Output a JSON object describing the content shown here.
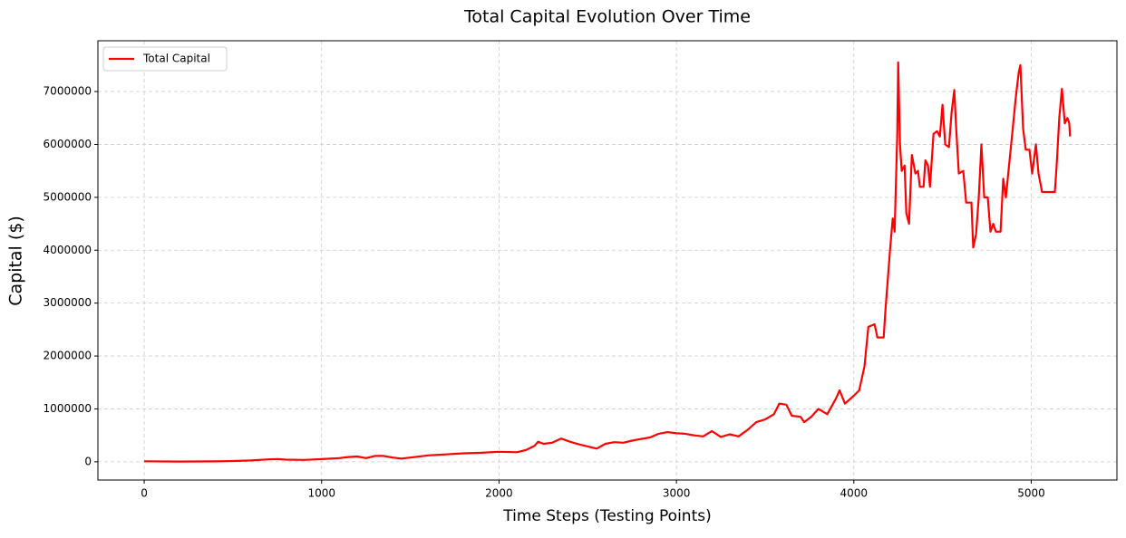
{
  "chart_data": {
    "type": "line",
    "title": "Total Capital Evolution Over Time",
    "x_label": "Time Steps (Testing Points)",
    "y_label": "Capital ($)",
    "x": [
      0,
      200,
      400,
      500,
      600,
      700,
      750,
      800,
      900,
      1000,
      1100,
      1150,
      1200,
      1250,
      1300,
      1350,
      1400,
      1450,
      1500,
      1600,
      1700,
      1800,
      1900,
      2000,
      2100,
      2150,
      2200,
      2220,
      2250,
      2300,
      2350,
      2400,
      2450,
      2500,
      2550,
      2600,
      2650,
      2700,
      2750,
      2800,
      2850,
      2900,
      2950,
      3000,
      3050,
      3100,
      3150,
      3200,
      3250,
      3300,
      3350,
      3400,
      3450,
      3500,
      3550,
      3580,
      3620,
      3650,
      3700,
      3720,
      3760,
      3800,
      3850,
      3900,
      3920,
      3950,
      4000,
      4030,
      4060,
      4082,
      4117,
      4133,
      4168,
      4179,
      4204,
      4219,
      4230,
      4245,
      4250,
      4260,
      4270,
      4286,
      4296,
      4311,
      4327,
      4347,
      4362,
      4372,
      4393,
      4403,
      4418,
      4429,
      4449,
      4469,
      4485,
      4500,
      4515,
      4536,
      4551,
      4566,
      4577,
      4592,
      4617,
      4633,
      4663,
      4673,
      4689,
      4704,
      4719,
      4735,
      4755,
      4770,
      4786,
      4801,
      4827,
      4842,
      4857,
      4872,
      4893,
      4913,
      4929,
      4939,
      4954,
      4969,
      4990,
      5005,
      5026,
      5041,
      5061,
      5133,
      5143,
      5158,
      5173,
      5189,
      5204,
      5214,
      5219
    ],
    "series": [
      {
        "name": "Total Capital",
        "color": "#ff0000",
        "values": [
          10000,
          5000,
          8000,
          15000,
          25000,
          45000,
          50000,
          40000,
          35000,
          50000,
          70000,
          90000,
          100000,
          70000,
          110000,
          110000,
          80000,
          60000,
          80000,
          120000,
          140000,
          160000,
          170000,
          190000,
          180000,
          220000,
          300000,
          380000,
          340000,
          360000,
          440000,
          380000,
          330000,
          290000,
          250000,
          340000,
          370000,
          360000,
          400000,
          430000,
          460000,
          530000,
          560000,
          540000,
          530000,
          500000,
          480000,
          580000,
          470000,
          520000,
          480000,
          600000,
          750000,
          800000,
          900000,
          1100000,
          1080000,
          870000,
          850000,
          750000,
          850000,
          1000000,
          900000,
          1200000,
          1350000,
          1100000,
          1250000,
          1350000,
          1800000,
          2550000,
          2600000,
          2350000,
          2350000,
          2900000,
          4000000,
          4600000,
          4350000,
          6200000,
          7550000,
          6000000,
          5500000,
          5600000,
          4700000,
          4500000,
          5800000,
          5450000,
          5500000,
          5200000,
          5200000,
          5700000,
          5600000,
          5200000,
          6200000,
          6250000,
          6150000,
          6750000,
          6000000,
          5950000,
          6600000,
          7030000,
          6300000,
          5450000,
          5500000,
          4900000,
          4900000,
          4050000,
          4300000,
          5000000,
          6000000,
          5000000,
          5000000,
          4350000,
          4500000,
          4350000,
          4350000,
          5350000,
          5000000,
          5500000,
          6200000,
          6900000,
          7350000,
          7500000,
          6300000,
          5900000,
          5900000,
          5450000,
          6000000,
          5450000,
          5100000,
          5100000,
          5600000,
          6500000,
          7050000,
          6400000,
          6500000,
          6400000,
          6150000
        ]
      }
    ],
    "xlim": [
      -261,
      5483
    ],
    "ylim": [
      -345000,
      7960000
    ],
    "xticks": [
      0,
      1000,
      2000,
      3000,
      4000,
      5000
    ],
    "yticks": [
      0,
      1000000,
      2000000,
      3000000,
      4000000,
      5000000,
      6000000,
      7000000
    ],
    "grid": true,
    "legend": "upper left"
  }
}
